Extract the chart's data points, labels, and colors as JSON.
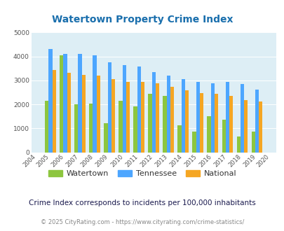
{
  "title": "Watertown Property Crime Index",
  "years": [
    2004,
    2005,
    2006,
    2007,
    2008,
    2009,
    2010,
    2011,
    2012,
    2013,
    2014,
    2015,
    2016,
    2017,
    2018,
    2019,
    2020
  ],
  "watertown": [
    null,
    2150,
    4050,
    2000,
    2020,
    1230,
    2150,
    1910,
    2430,
    2360,
    1130,
    860,
    1520,
    1370,
    660,
    880,
    null
  ],
  "tennessee": [
    null,
    4320,
    4090,
    4090,
    4040,
    3760,
    3650,
    3580,
    3350,
    3190,
    3060,
    2950,
    2880,
    2940,
    2840,
    2630,
    null
  ],
  "national": [
    null,
    3440,
    3330,
    3230,
    3200,
    3040,
    2950,
    2930,
    2870,
    2720,
    2590,
    2470,
    2450,
    2350,
    2180,
    2130,
    null
  ],
  "watertown_color": "#8dc63f",
  "tennessee_color": "#4da6ff",
  "national_color": "#f5a623",
  "bg_color": "#ddeef5",
  "ylim": [
    0,
    5000
  ],
  "yticks": [
    0,
    1000,
    2000,
    3000,
    4000,
    5000
  ],
  "subtitle": "Crime Index corresponds to incidents per 100,000 inhabitants",
  "footer": "© 2025 CityRating.com - https://www.cityrating.com/crime-statistics/",
  "legend_labels": [
    "Watertown",
    "Tennessee",
    "National"
  ],
  "title_color": "#1a6fad",
  "subtitle_color": "#1a1a4e",
  "footer_color": "#888888",
  "link_color": "#4da6ff"
}
